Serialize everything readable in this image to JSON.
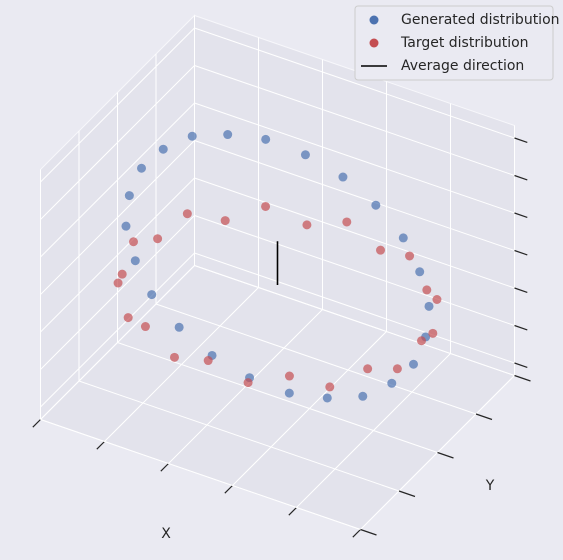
{
  "chart_data": {
    "type": "scatter3d",
    "xlabel": "X",
    "ylabel": "Y",
    "xlim": [
      -1,
      1
    ],
    "ylim": [
      -1,
      1
    ],
    "zlim": [
      -1,
      1
    ],
    "xticks": [
      -1,
      -0.6,
      -0.2,
      0.2,
      0.6,
      1
    ],
    "yticks": [
      -1,
      -0.5,
      0,
      0.5,
      1
    ],
    "zticks": [
      -0.9,
      -0.6,
      -0.3,
      0,
      0.3,
      0.6,
      0.9
    ],
    "grid": true,
    "legend": "upper right",
    "series": [
      {
        "name": "Generated distribution",
        "color": "#4c72b0",
        "kind": "scatter",
        "x": [
          0.85,
          0.82,
          0.74,
          0.6,
          0.43,
          0.22,
          0,
          -0.22,
          -0.43,
          -0.6,
          -0.74,
          -0.82,
          -0.85,
          -0.82,
          -0.74,
          -0.6,
          -0.43,
          -0.22,
          0,
          0.22,
          0.43,
          0.6,
          0.74,
          0.82
        ],
        "y": [
          0,
          0.22,
          0.43,
          0.6,
          0.74,
          0.82,
          0.85,
          0.82,
          0.74,
          0.6,
          0.43,
          0.22,
          0,
          -0.22,
          -0.43,
          -0.6,
          -0.74,
          -0.82,
          -0.85,
          -0.82,
          -0.74,
          -0.6,
          -0.43,
          -0.22
        ],
        "z": [
          -0.36,
          -0.29,
          -0.21,
          -0.1,
          0.01,
          0.13,
          0.24,
          0.34,
          0.42,
          0.47,
          0.5,
          0.49,
          0.46,
          0.39,
          0.31,
          0.2,
          0.09,
          -0.03,
          -0.14,
          -0.24,
          -0.32,
          -0.37,
          -0.4,
          -0.39
        ]
      },
      {
        "name": "Target distribution",
        "color": "#c44e52",
        "kind": "scatter",
        "x": [
          0.9,
          0.86,
          0.78,
          0.63,
          0.45,
          0.23,
          0,
          -0.23,
          -0.45,
          -0.63,
          -0.78,
          -0.86,
          -0.9,
          -0.86,
          -0.78,
          -0.63,
          -0.45,
          -0.23,
          0,
          0.23,
          0.45,
          0.63,
          0.78,
          0.86
        ],
        "y": [
          0,
          0.23,
          0.45,
          0.63,
          0.78,
          0.86,
          0.9,
          0.86,
          0.78,
          0.63,
          0.45,
          0.23,
          0,
          -0.23,
          -0.45,
          -0.63,
          -0.78,
          -0.86,
          -0.9,
          -0.86,
          -0.78,
          -0.63,
          -0.45,
          -0.23
        ],
        "z": [
          -0.15,
          -0.25,
          -0.15,
          -0.25,
          -0.15,
          -0.25,
          -0.15,
          -0.25,
          -0.15,
          -0.25,
          -0.15,
          -0.25,
          -0.15,
          -0.25,
          -0.15,
          -0.25,
          -0.15,
          -0.25,
          -0.15,
          -0.25,
          -0.15,
          -0.25,
          -0.15,
          -0.25
        ]
      },
      {
        "name": "Average direction",
        "color": "#000000",
        "kind": "line",
        "x": [
          0,
          0
        ],
        "y": [
          0,
          0
        ],
        "z": [
          -0.1,
          0.25
        ]
      }
    ]
  }
}
